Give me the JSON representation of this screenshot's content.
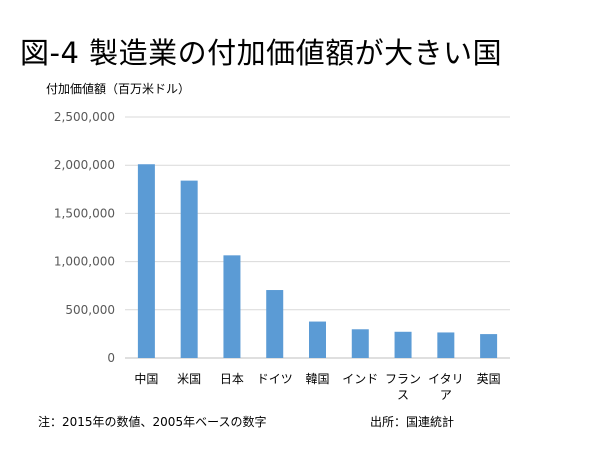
{
  "page": {
    "title": "図-4 製造業の付加価値額が大きい国",
    "footnote": "注：2015年の数値、2005年ベースの数字",
    "source": "出所：国連統計"
  },
  "chart_data": {
    "type": "bar",
    "title": "図-4 製造業の付加価値額が大きい国",
    "ylabel": "付加価値額（百万米ドル）",
    "xlabel": "",
    "categories": [
      "中国",
      "米国",
      "日本",
      "ドイツ",
      "韓国",
      "インド",
      "フランス",
      "イタリア",
      "英国"
    ],
    "category_lines": [
      [
        "中国"
      ],
      [
        "米国"
      ],
      [
        "日本"
      ],
      [
        "ドイツ"
      ],
      [
        "韓国"
      ],
      [
        "インド"
      ],
      [
        "フラン",
        "ス"
      ],
      [
        "イタリ",
        "ア"
      ],
      [
        "英国"
      ]
    ],
    "values": [
      2010000,
      1840000,
      1065000,
      705000,
      378000,
      298000,
      272000,
      265000,
      248000
    ],
    "ylim": [
      0,
      2500000
    ],
    "yticks": [
      0,
      500000,
      1000000,
      1500000,
      2000000,
      2500000
    ],
    "ytick_labels": [
      "0",
      "500,000",
      "1,000,000",
      "1,500,000",
      "2,000,000",
      "2,500,000"
    ],
    "grid": true,
    "legend": "none",
    "colors": {
      "bar": "#5b9bd5",
      "grid": "#d9d9d9",
      "axis": "#bfbfbf"
    }
  }
}
